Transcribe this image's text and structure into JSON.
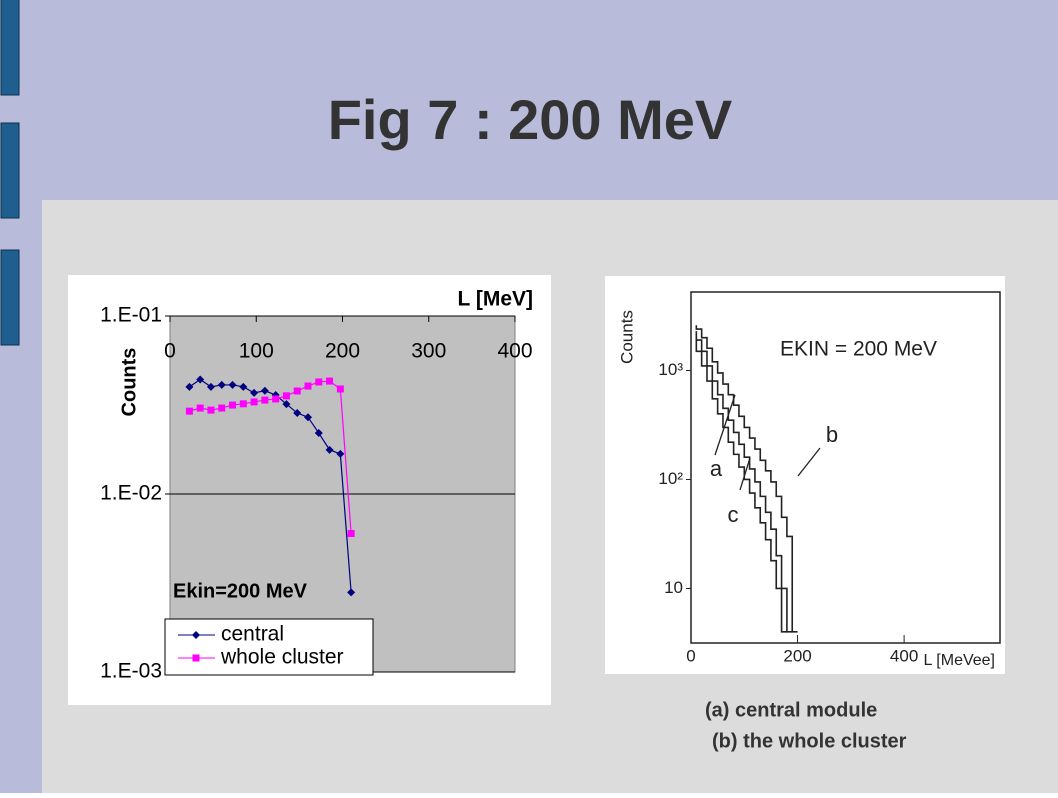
{
  "title": "Fig 7 : 200 MeV",
  "captions": [
    "(a) central module",
    "(b) the whole cluster"
  ],
  "chart_data": [
    {
      "type": "line",
      "x_label": "L [MeV]",
      "y_label": "Counts",
      "annotation": "Ekin=200 MeV",
      "log_y": true,
      "grid": true,
      "legend": "lower left",
      "xlim": [
        0,
        400
      ],
      "xticks": [
        0,
        100,
        200,
        300,
        400
      ],
      "ylim": [
        0.001,
        0.1
      ],
      "yticks": [
        {
          "value": 0.1,
          "label": "1.E-01"
        },
        {
          "value": 0.01,
          "label": "1.E-02"
        },
        {
          "value": 0.001,
          "label": "1.E-03"
        }
      ],
      "x": [
        22.5,
        35,
        47.5,
        60,
        72.5,
        85,
        97.5,
        110,
        122.5,
        135,
        147.5,
        160,
        172.5,
        185,
        197.5,
        210
      ],
      "series": [
        {
          "name": "central",
          "color": "#000080",
          "marker": "diamond",
          "values": [
            0.04,
            0.044,
            0.04,
            0.041,
            0.041,
            0.04,
            0.037,
            0.038,
            0.036,
            0.032,
            0.0285,
            0.027,
            0.022,
            0.0177,
            0.0168,
            0.0028
          ]
        },
        {
          "name": "whole cluster",
          "color": "#ff00ff",
          "marker": "square",
          "values": [
            0.0292,
            0.0304,
            0.0296,
            0.0304,
            0.0316,
            0.0321,
            0.0329,
            0.0337,
            0.0342,
            0.0356,
            0.0379,
            0.0404,
            0.0426,
            0.0431,
            0.0389,
            0.006
          ]
        }
      ]
    },
    {
      "type": "step",
      "x_label": "L [MeVee]",
      "y_label": "Counts",
      "annotation": "EKIN = 200 MeV",
      "log_y": true,
      "grid": false,
      "xlim": [
        0,
        580
      ],
      "xticks": [
        0,
        200,
        400
      ],
      "ylim": [
        3.16,
        5250
      ],
      "yticks": [
        {
          "value": 1000,
          "label": "10³"
        },
        {
          "value": 100,
          "label": "10²"
        },
        10
      ],
      "x": [
        10,
        20,
        30,
        40,
        50,
        60,
        70,
        80,
        90,
        100,
        110,
        120,
        130,
        140,
        150,
        160,
        170,
        180,
        190,
        200
      ],
      "series": [
        {
          "name": "a",
          "color": "#222222",
          "values": [
            2000,
            1500,
            1100,
            800,
            550,
            400,
            300,
            220,
            170,
            130,
            100,
            75,
            55,
            40,
            28,
            18,
            10,
            4,
            null,
            null
          ]
        },
        {
          "name": "b",
          "color": "#222222",
          "values": [
            2600,
            2400,
            2000,
            1600,
            1200,
            950,
            750,
            600,
            480,
            380,
            300,
            240,
            190,
            150,
            120,
            95,
            70,
            45,
            30,
            4
          ]
        },
        {
          "name": "c",
          "color": "#222222",
          "values": [
            2300,
            1900,
            1500,
            1100,
            800,
            600,
            450,
            350,
            270,
            210,
            160,
            125,
            95,
            70,
            50,
            35,
            20,
            10,
            4,
            null
          ]
        }
      ]
    }
  ]
}
